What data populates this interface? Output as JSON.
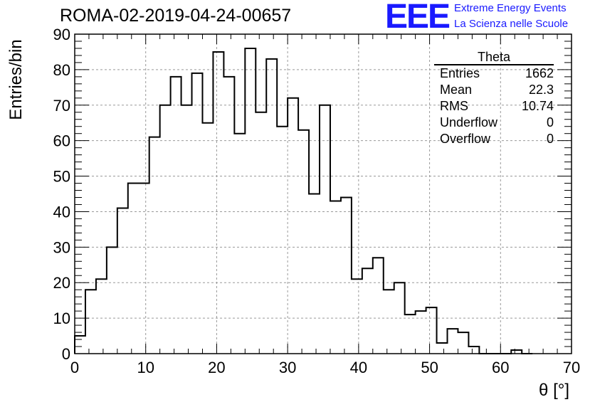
{
  "header": {
    "title": "ROMA-02-2019-04-24-00657",
    "logo_text": "EEE",
    "brand_line1": "Extreme Energy Events",
    "brand_line2": "La Scienza nelle Scuole"
  },
  "stats": {
    "title": "Theta",
    "rows": [
      {
        "label": "Entries",
        "value": "1662"
      },
      {
        "label": "Mean",
        "value": "22.3"
      },
      {
        "label": "RMS",
        "value": "10.74"
      },
      {
        "label": "Underflow",
        "value": "0"
      },
      {
        "label": "Overflow",
        "value": "0"
      }
    ]
  },
  "colors": {
    "accent": "#1a1aff",
    "line": "#000000",
    "grid": "#999999"
  },
  "chart_data": {
    "type": "histogram",
    "xlabel": "θ [°]",
    "ylabel": "Entries/bin",
    "xlim": [
      0,
      70
    ],
    "ylim": [
      0,
      90
    ],
    "bin_width": 1.5,
    "bin_start": 0,
    "values": [
      5,
      18,
      21,
      30,
      41,
      48,
      48,
      61,
      70,
      78,
      70,
      79,
      65,
      85,
      78,
      62,
      86,
      68,
      83,
      64,
      72,
      63,
      45,
      70,
      43,
      44,
      21,
      24,
      27,
      18,
      20,
      11,
      12,
      13,
      3,
      7,
      6,
      2,
      0,
      0,
      0,
      1,
      0
    ],
    "xticks": [
      0,
      10,
      20,
      30,
      40,
      50,
      60,
      70
    ],
    "yticks": [
      0,
      10,
      20,
      30,
      40,
      50,
      60,
      70,
      80,
      90
    ],
    "grid": true
  }
}
